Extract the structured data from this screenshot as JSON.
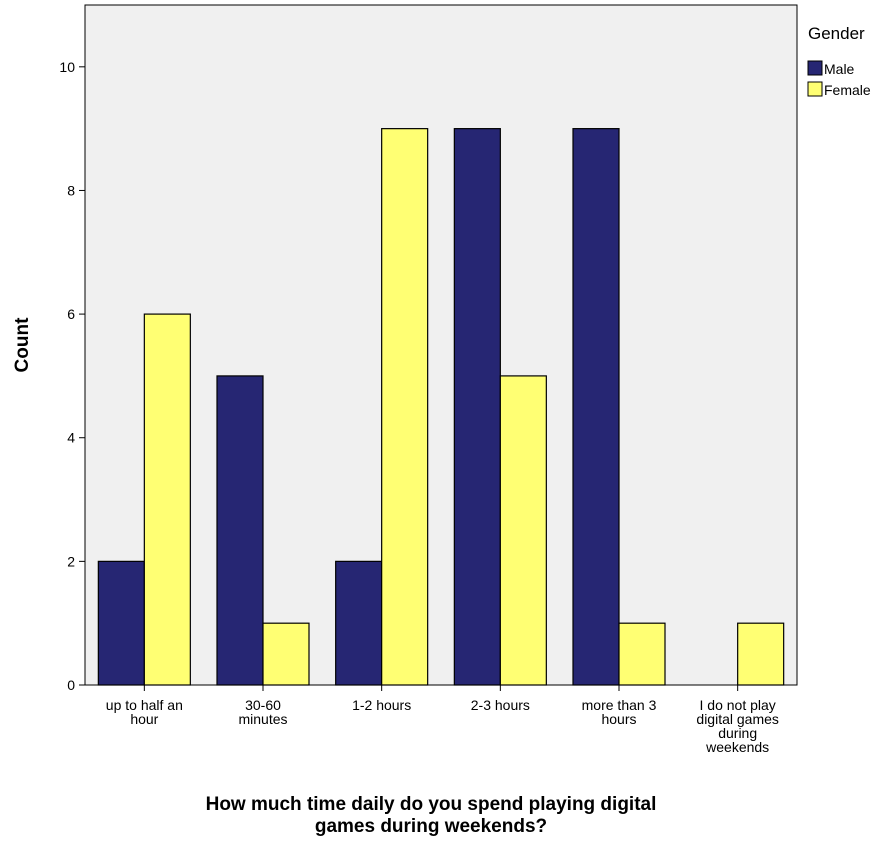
{
  "chart_data": {
    "type": "bar",
    "title": "",
    "xlabel": [
      "How much time daily do you spend playing digital",
      "games during weekends?"
    ],
    "ylabel": "Count",
    "ylim": [
      0,
      11
    ],
    "yticks": [
      0,
      2,
      4,
      6,
      8,
      10
    ],
    "grid": false,
    "categories": [
      [
        "up to half an",
        "hour"
      ],
      [
        "30-60",
        "minutes"
      ],
      [
        "1-2 hours"
      ],
      [
        "2-3 hours"
      ],
      [
        "more than 3",
        "hours"
      ],
      [
        "I do not play",
        "digital games",
        "during",
        "weekends"
      ]
    ],
    "legend": {
      "title": "Gender",
      "placement": "right"
    },
    "series": [
      {
        "name": "Male",
        "color": "#262673",
        "values": [
          2,
          5,
          2,
          9,
          9,
          0
        ]
      },
      {
        "name": "Female",
        "color": "#ffff73",
        "values": [
          6,
          1,
          9,
          5,
          1,
          1
        ]
      }
    ],
    "plot_background": "#f0f0f0"
  }
}
